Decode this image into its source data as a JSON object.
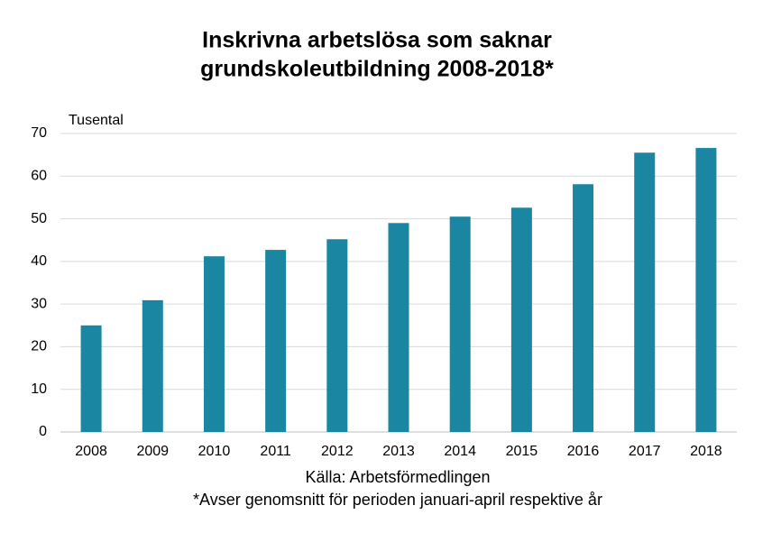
{
  "chart_data": {
    "type": "bar",
    "title": [
      "Inskrivna arbetslösa som saknar",
      "grundskoleutbildning 2008-2018*"
    ],
    "y_label": "Tusental",
    "source": "Källa: Arbetsförmedlingen",
    "note": "*Avser genomsnitt för perioden januari-april respektive år",
    "categories": [
      "2008",
      "2009",
      "2010",
      "2011",
      "2012",
      "2013",
      "2014",
      "2015",
      "2016",
      "2017",
      "2018"
    ],
    "values": [
      25,
      30.9,
      41.2,
      42.7,
      45.2,
      49,
      50.5,
      52.6,
      58.1,
      65.5,
      66.6
    ],
    "color": "#1b86a1",
    "ylim": [
      0,
      70
    ],
    "yticks": [
      0,
      10,
      20,
      30,
      40,
      50,
      60,
      70
    ],
    "grid": true
  }
}
